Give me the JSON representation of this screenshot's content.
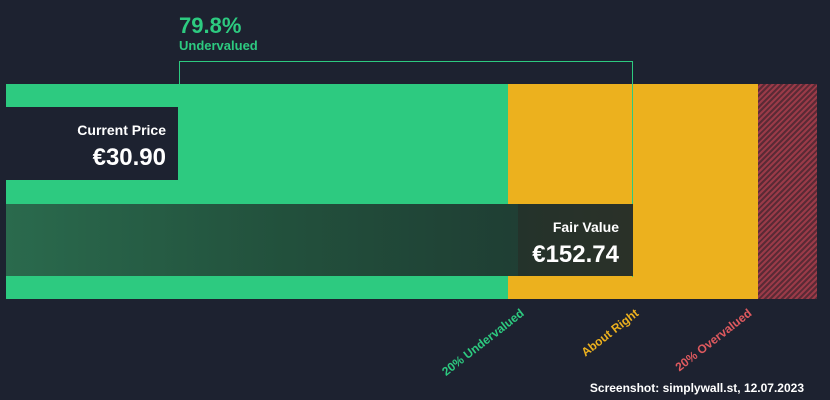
{
  "colors": {
    "background": "#1d2230",
    "undervalued": "#2dca80",
    "about_right": "#ecb11e",
    "overvalued": "#e05a5f",
    "bracket": "#2dca80"
  },
  "valuation": {
    "percent": "79.8%",
    "status": "Undervalued"
  },
  "current_price": {
    "label": "Current Price",
    "value": "€30.90"
  },
  "fair_value": {
    "label": "Fair Value",
    "value": "€152.74"
  },
  "zones": {
    "undervalued_label": "20% Undervalued",
    "about_right_label": "About Right",
    "overvalued_label": "20% Overvalued"
  },
  "caption": "Screenshot: simplywall.st, 12.07.2023",
  "chart_data": {
    "type": "bar",
    "currency": "€",
    "current_price": 30.9,
    "fair_value": 152.74,
    "discount_percent": 79.8,
    "discount_status": "Undervalued",
    "zones": [
      {
        "name": "20% Undervalued",
        "color": "#2dca80"
      },
      {
        "name": "About Right",
        "color": "#ecb11e"
      },
      {
        "name": "20% Overvalued",
        "color": "#e05a5f"
      }
    ]
  }
}
